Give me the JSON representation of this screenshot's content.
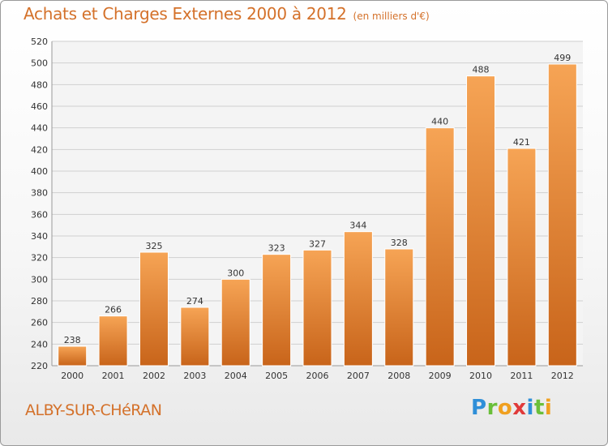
{
  "title": "Achats et Charges Externes 2000 à 2012",
  "subtitle": "(en milliers d'€)",
  "place": "ALBY-SUR-CHéRAN",
  "logo": {
    "letters": [
      "P",
      "r",
      "o",
      "x",
      "i",
      "t",
      "i"
    ],
    "colors": [
      "#2f8fd8",
      "#6abf3a",
      "#f0a020",
      "#e03a3a",
      "#2f8fd8",
      "#6abf3a",
      "#f0a020"
    ]
  },
  "colors": {
    "bar_top": "#f6a455",
    "bar_bottom": "#c8641a",
    "title": "#d4712a"
  },
  "chart_data": {
    "type": "bar",
    "categories": [
      "2000",
      "2001",
      "2002",
      "2003",
      "2004",
      "2005",
      "2006",
      "2007",
      "2008",
      "2009",
      "2010",
      "2011",
      "2012"
    ],
    "values": [
      238,
      266,
      325,
      274,
      300,
      323,
      327,
      344,
      328,
      440,
      488,
      421,
      499
    ],
    "ylim": [
      220,
      520
    ],
    "yticks": [
      220,
      240,
      260,
      280,
      300,
      320,
      340,
      360,
      380,
      400,
      420,
      440,
      460,
      480,
      500,
      520
    ],
    "grid": true,
    "xlabel": "",
    "ylabel": ""
  }
}
